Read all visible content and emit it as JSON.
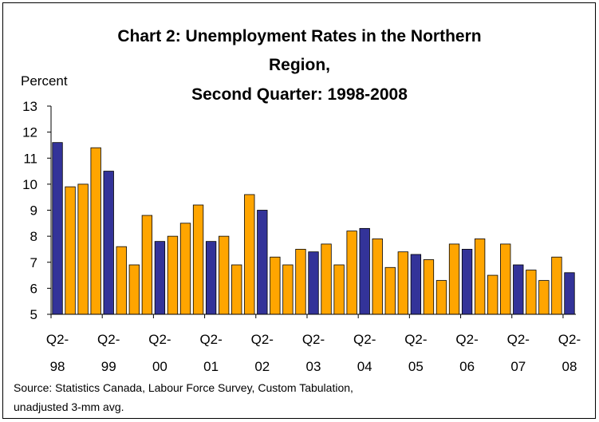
{
  "chart_data": {
    "type": "bar",
    "title_lines": [
      "Chart 2: Unemployment Rates in the Northern",
      "Region,",
      "Second Quarter: 1998-2008"
    ],
    "ylabel": "Percent",
    "ylim": [
      5,
      13
    ],
    "yticks": [
      5,
      6,
      7,
      8,
      9,
      10,
      11,
      12,
      13
    ],
    "xtick_labels": [
      [
        "Q2-",
        "98"
      ],
      [
        "Q2-",
        "99"
      ],
      [
        "Q2-",
        "00"
      ],
      [
        "Q2-",
        "01"
      ],
      [
        "Q2-",
        "02"
      ],
      [
        "Q2-",
        "03"
      ],
      [
        "Q2-",
        "04"
      ],
      [
        "Q2-",
        "05"
      ],
      [
        "Q2-",
        "06"
      ],
      [
        "Q2-",
        "07"
      ],
      [
        "Q2-",
        "08"
      ]
    ],
    "colors": {
      "highlight": "#333399",
      "other": "#FFA500",
      "axis": "#000000"
    },
    "values": [
      11.6,
      9.9,
      10.0,
      11.4,
      10.5,
      7.6,
      6.9,
      8.8,
      7.8,
      8.0,
      8.5,
      9.2,
      7.8,
      8.0,
      6.9,
      9.6,
      9.0,
      7.2,
      6.9,
      7.5,
      7.4,
      7.7,
      6.9,
      8.2,
      8.3,
      7.9,
      6.8,
      7.4,
      7.3,
      7.1,
      6.3,
      7.7,
      7.5,
      7.9,
      6.5,
      7.7,
      6.9,
      6.7,
      6.3,
      7.2,
      6.6
    ],
    "highlight_indices": [
      0,
      4,
      8,
      12,
      16,
      20,
      24,
      28,
      32,
      36,
      40
    ]
  },
  "source": {
    "line1": "Source: Statistics Canada, Labour Force Survey, Custom Tabulation,",
    "line2": "unadjusted 3-mm avg."
  }
}
